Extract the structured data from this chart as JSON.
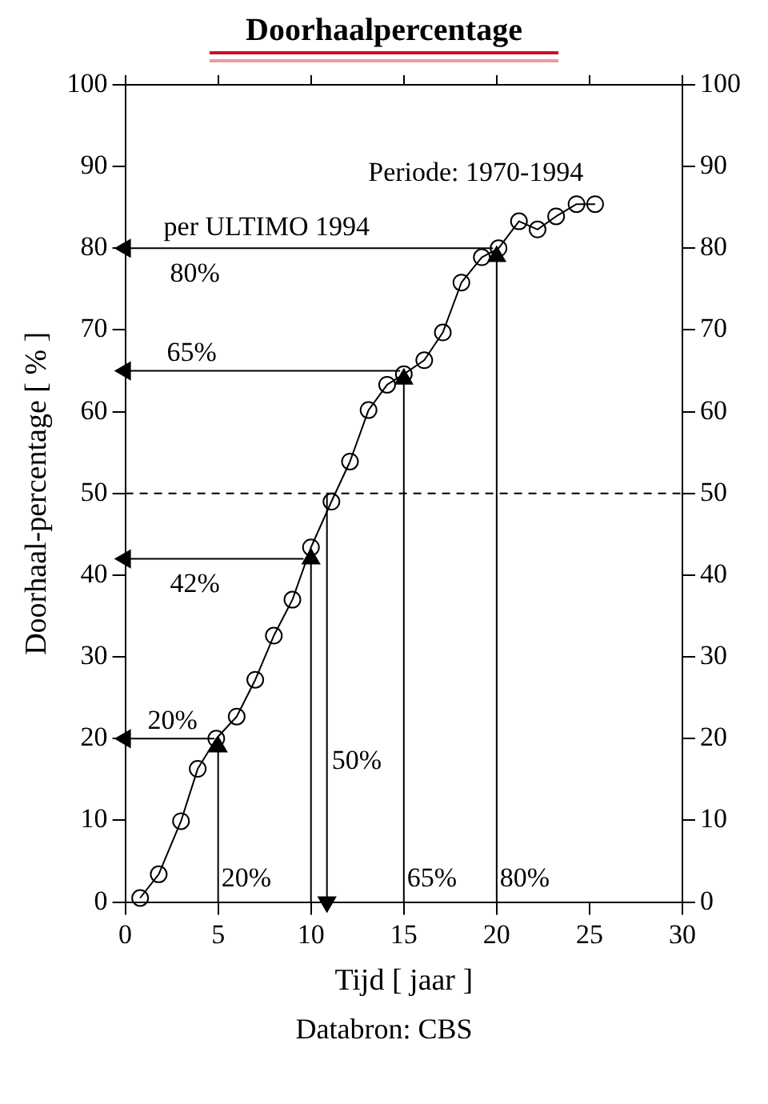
{
  "chart_data": {
    "type": "line",
    "title": "Doorhaalpercentage",
    "xlabel": "Tijd [ jaar ]",
    "ylabel": "Doorhaal-percentage [ % ]",
    "x": [
      0.8,
      1.8,
      3.0,
      3.9,
      4.9,
      6.0,
      7.0,
      8.0,
      9.0,
      10.0,
      11.1,
      12.1,
      13.1,
      14.1,
      15.0,
      16.1,
      17.1,
      18.1,
      19.2,
      20.1,
      21.2,
      22.2,
      23.2,
      24.3,
      25.3
    ],
    "series": [
      {
        "color": "#000000",
        "values": [
          0.5,
          3.4,
          9.9,
          16.3,
          20,
          22.7,
          27.2,
          32.6,
          37.0,
          43.4,
          49.0,
          53.9,
          60.2,
          63.3,
          64.6,
          66.3,
          69.7,
          75.8,
          78.9,
          80.0,
          83.3,
          82.3,
          83.9,
          85.4,
          85.4
        ]
      },
      {
        "type": "line",
        "marker": "triangle",
        "color": "#000000",
        "x": [
          19.8,
          0
        ],
        "values": [
          80,
          80
        ]
      },
      {
        "type": "line",
        "marker": "triangle",
        "color": "#000000",
        "x": [
          14.8,
          0
        ],
        "values": [
          65,
          65
        ]
      },
      {
        "type": "line",
        "marker": "triangle",
        "color": "#000000",
        "x": [
          9.6,
          0
        ],
        "values": [
          42,
          42
        ]
      },
      {
        "type": "line",
        "marker": "triangle",
        "color": "#000000",
        "x": [
          4.8,
          0
        ],
        "values": [
          20,
          20
        ]
      },
      {
        "type": "line",
        "marker": "triangle",
        "color": "#000000",
        "x": [
          5,
          5
        ],
        "values": [
          0,
          19
        ]
      },
      {
        "type": "line",
        "marker": "triangle",
        "color": "#000000",
        "x": [
          10.86,
          10.86
        ],
        "values": [
          50,
          0
        ]
      },
      {
        "type": "line",
        "marker": "triangle",
        "color": "#000000",
        "x": [
          15,
          15
        ],
        "values": [
          0,
          64
        ]
      },
      {
        "type": "line",
        "marker": "triangle",
        "color": "#000000",
        "x": [
          20,
          20
        ],
        "values": [
          0,
          79
        ]
      },
      {
        "type": "line",
        "marker": "triangle",
        "color": "#000000",
        "x": [
          10,
          10
        ],
        "values": [
          0,
          42
        ]
      }
    ],
    "xlim": [
      0,
      30
    ],
    "xticks": [
      0,
      5,
      10,
      15,
      20,
      25,
      30
    ],
    "ylim": [
      0,
      100
    ],
    "yticks": [
      0,
      10,
      20,
      30,
      40,
      50,
      60,
      70,
      80,
      90,
      100
    ],
    "y2lim": [
      0,
      100
    ],
    "y2ticks": [
      0,
      10,
      20,
      30,
      40,
      50,
      60,
      70,
      80,
      90,
      100
    ],
    "marker": "circle",
    "line_style": "solid",
    "legend": false,
    "ref_lines": [
      {
        "axis": "y",
        "value": 50,
        "color": "#000000",
        "line_style": "dashed"
      }
    ],
    "annotations": [
      "Periode: 1970-1994",
      "per ULTIMO 1994",
      "80%",
      "65%",
      "42%",
      "20%",
      "20%",
      "50%",
      "65%",
      "80%",
      "Databron: CBS"
    ]
  }
}
